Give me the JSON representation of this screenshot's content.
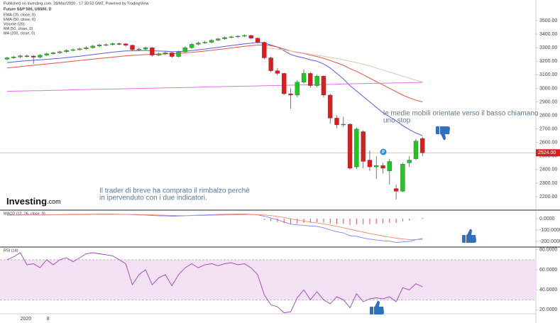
{
  "header": {
    "published": "Published on Investing.com, 28/Mar/2020 - 17:30:52 GMT, Powered by TradingView",
    "logo_main": "Investing",
    "logo_suffix": ".com"
  },
  "chart_data": [
    {
      "type": "candlestick",
      "title": "Future S&P 500, US500, D",
      "categories": [
        null,
        null,
        "2020",
        null,
        null,
        null,
        "8",
        null,
        null,
        null,
        null,
        null,
        null,
        null,
        null,
        null,
        null,
        null,
        null,
        null,
        null,
        null,
        null,
        null,
        null,
        null,
        null,
        null,
        null,
        null,
        null,
        null,
        null,
        null,
        null,
        null,
        null,
        null,
        null,
        null,
        null,
        null,
        null,
        null,
        null,
        null,
        null,
        null,
        null,
        null,
        null,
        null,
        null,
        null,
        null,
        null,
        null,
        null,
        null,
        null,
        null,
        null,
        null,
        null
      ],
      "open": [
        3215,
        3225,
        3232,
        3240,
        3238,
        3230,
        3245,
        3255,
        3262,
        3270,
        3280,
        3285,
        3292,
        3300,
        3312,
        3320,
        3322,
        3330,
        3328,
        3318,
        3285,
        3290,
        3300,
        3245,
        3255,
        3262,
        3235,
        3270,
        3300,
        3325,
        3335,
        3340,
        3355,
        3365,
        3375,
        3380,
        3385,
        3390,
        3370,
        3340,
        3225,
        3130,
        3110,
        2960,
        2950,
        3045,
        3110,
        3020,
        3090,
        2950,
        2780,
        2730,
        2735,
        2420,
        2680,
        2470,
        2420,
        2430,
        2390,
        2260,
        2240,
        2450,
        2480,
        2630
      ],
      "high": [
        3232,
        3240,
        3248,
        3250,
        3245,
        3252,
        3262,
        3270,
        3278,
        3288,
        3294,
        3300,
        3310,
        3320,
        3328,
        3332,
        3338,
        3338,
        3335,
        3322,
        3300,
        3308,
        3305,
        3265,
        3272,
        3270,
        3278,
        3310,
        3335,
        3345,
        3350,
        3362,
        3372,
        3382,
        3388,
        3392,
        3398,
        3395,
        3375,
        3345,
        3235,
        3150,
        3115,
        3000,
        3060,
        3140,
        3120,
        3100,
        3095,
        2960,
        2800,
        2790,
        2740,
        2710,
        2690,
        2540,
        2500,
        2450,
        2480,
        2290,
        2450,
        2500,
        2625,
        2640
      ],
      "low": [
        3205,
        3218,
        3225,
        3228,
        3180,
        3222,
        3238,
        3248,
        3255,
        3262,
        3272,
        3278,
        3285,
        3294,
        3305,
        3312,
        3315,
        3318,
        3308,
        3275,
        3275,
        3280,
        3235,
        3238,
        3245,
        3225,
        3228,
        3262,
        3292,
        3318,
        3328,
        3332,
        3348,
        3358,
        3368,
        3372,
        3378,
        3362,
        3330,
        3215,
        3120,
        3095,
        2950,
        2850,
        2935,
        3035,
        3005,
        3010,
        2935,
        2740,
        2705,
        2715,
        2400,
        2405,
        2410,
        2390,
        2330,
        2370,
        2290,
        2180,
        2235,
        2420,
        2470,
        2500
      ],
      "close": [
        3225,
        3232,
        3240,
        3238,
        3230,
        3245,
        3255,
        3262,
        3270,
        3280,
        3285,
        3292,
        3300,
        3312,
        3320,
        3322,
        3330,
        3328,
        3318,
        3285,
        3290,
        3300,
        3245,
        3255,
        3262,
        3235,
        3270,
        3300,
        3325,
        3335,
        3340,
        3355,
        3365,
        3375,
        3380,
        3385,
        3390,
        3370,
        3340,
        3225,
        3130,
        3110,
        2960,
        2950,
        3045,
        3110,
        3020,
        3090,
        2950,
        2780,
        2730,
        2735,
        2410,
        2700,
        2460,
        2420,
        2430,
        2410,
        2460,
        2240,
        2440,
        2470,
        2610,
        2524
      ],
      "last_label": "2524.00",
      "up_color": "#1ec81e",
      "down_color": "#e01b1b",
      "last_line_color": "#f4a090",
      "lines": [
        {
          "name": "EMA (20, close, 0)",
          "color": "#5b5bde",
          "values": [
            3190,
            3195,
            3200,
            3204,
            3207,
            3210,
            3214,
            3218,
            3222,
            3227,
            3232,
            3237,
            3243,
            3249,
            3255,
            3261,
            3267,
            3272,
            3276,
            3277,
            3278,
            3280,
            3277,
            3275,
            3274,
            3271,
            3271,
            3274,
            3279,
            3284,
            3290,
            3296,
            3302,
            3309,
            3316,
            3322,
            3328,
            3333,
            3339,
            3335,
            3320,
            3305,
            3277,
            3250,
            3235,
            3225,
            3210,
            3200,
            3180,
            3150,
            3110,
            3070,
            3020,
            2980,
            2940,
            2900,
            2860,
            2820,
            2790,
            2760,
            2725,
            2695,
            2670,
            2650
          ]
        },
        {
          "name": "EMA (50, close, 0)",
          "color": "#e8504a",
          "values": [
            3150,
            3155,
            3160,
            3165,
            3170,
            3175,
            3180,
            3185,
            3190,
            3195,
            3200,
            3205,
            3210,
            3215,
            3220,
            3225,
            3230,
            3235,
            3240,
            3243,
            3246,
            3249,
            3250,
            3252,
            3254,
            3255,
            3258,
            3262,
            3266,
            3270,
            3275,
            3280,
            3286,
            3292,
            3298,
            3304,
            3310,
            3315,
            3320,
            3320,
            3315,
            3305,
            3290,
            3275,
            3265,
            3258,
            3245,
            3235,
            3222,
            3205,
            3188,
            3170,
            3145,
            3125,
            3100,
            3075,
            3050,
            3025,
            3000,
            2975,
            2950,
            2930,
            2912,
            2900
          ]
        },
        {
          "name": "Volume (20)"
        },
        {
          "name": "MA (50, close, 0)",
          "color": "#d8c8b0",
          "values": [
            null,
            null,
            null,
            null,
            null,
            null,
            null,
            null,
            null,
            null,
            null,
            null,
            null,
            null,
            null,
            null,
            null,
            null,
            null,
            null,
            null,
            null,
            null,
            null,
            null,
            null,
            null,
            null,
            null,
            null,
            null,
            null,
            null,
            null,
            null,
            null,
            null,
            null,
            null,
            3300,
            3295,
            3290,
            3283,
            3275,
            3268,
            3260,
            3252,
            3245,
            3237,
            3228,
            3220,
            3210,
            3200,
            3190,
            3178,
            3165,
            3150,
            3135,
            3120,
            3105,
            3090,
            3075,
            3060,
            3045
          ]
        },
        {
          "name": "MA (200, close, 0)",
          "color": "#e070e0",
          "values": [
            2978,
            2979,
            2980,
            2981,
            2982,
            2983,
            2984,
            2985,
            2986,
            2987,
            2989,
            2990,
            2991,
            2992,
            2993,
            2994,
            2995,
            2996,
            2997,
            2998,
            2999,
            3000,
            3001,
            3002,
            3003,
            3004,
            3005,
            3006,
            3007,
            3008,
            3010,
            3011,
            3012,
            3013,
            3014,
            3015,
            3016,
            3017,
            3018,
            3019,
            3020,
            3021,
            3022,
            3023,
            3024,
            3025,
            3026,
            3027,
            3028,
            3029,
            3030,
            3032,
            3033,
            3034,
            3035,
            3036,
            3037,
            3038,
            3039,
            3040,
            3041,
            3042,
            3043,
            3044
          ]
        }
      ],
      "marker": "P",
      "annotations": [
        "le medie mobili orientate verso il basso chiamano",
        "uno stop",
        "Il trader di breve ha comprato il rimbalzo perchè",
        "in ipervenduto con i due indicatori."
      ],
      "ylim": [
        2106,
        3652
      ],
      "yticks": [
        {
          "value": 2200,
          "label": "2200.00"
        },
        {
          "value": 2300,
          "label": "2300.00"
        },
        {
          "value": 2400,
          "label": "2400.00"
        },
        {
          "value": 2500,
          "label": "2500.00"
        },
        {
          "value": 2600,
          "label": "2600.00"
        },
        {
          "value": 2700,
          "label": "2700.00"
        },
        {
          "value": 2800,
          "label": "2800.00"
        },
        {
          "value": 2900,
          "label": "2900.00"
        },
        {
          "value": 3000,
          "label": "3000.00"
        },
        {
          "value": 3100,
          "label": "3100.00"
        },
        {
          "value": 3200,
          "label": "3200.00"
        },
        {
          "value": 3300,
          "label": "3300.00"
        },
        {
          "value": 3400,
          "label": "3400.00"
        },
        {
          "value": 3500,
          "label": "3500.00"
        }
      ]
    },
    {
      "type": "line",
      "title": "MACD (12, 26, close, 9)",
      "series": [
        {
          "color": "#8080ee",
          "values": [
            30,
            32,
            34,
            35,
            34,
            33,
            34,
            35,
            36,
            37,
            38,
            38,
            39,
            39,
            40,
            40,
            40,
            39,
            38,
            35,
            33,
            32,
            28,
            26,
            25,
            22,
            23,
            26,
            29,
            31,
            33,
            35,
            37,
            38,
            39,
            40,
            40,
            38,
            34,
            22,
            5,
            -10,
            -30,
            -48,
            -55,
            -58,
            -65,
            -68,
            -80,
            -100,
            -115,
            -125,
            -150,
            -155,
            -170,
            -180,
            -188,
            -195,
            -198,
            -210,
            -205,
            -200,
            -185,
            -175
          ]
        },
        {
          "color": "#f08a70",
          "values": [
            30,
            31,
            32,
            33,
            33,
            33,
            33,
            34,
            34,
            35,
            35,
            36,
            36,
            37,
            37,
            38,
            38,
            38,
            38,
            37,
            36,
            35,
            34,
            32,
            30,
            28,
            27,
            27,
            27,
            28,
            29,
            30,
            32,
            33,
            34,
            35,
            36,
            37,
            36,
            33,
            27,
            20,
            10,
            -2,
            -12,
            -21,
            -30,
            -37,
            -46,
            -57,
            -68,
            -80,
            -94,
            -106,
            -119,
            -131,
            -142,
            -153,
            -162,
            -172,
            -179,
            -184,
            -184,
            -182
          ]
        },
        {
          "style": "histogram",
          "color": "#e05050",
          "values": [
            null,
            null,
            null,
            null,
            null,
            null,
            null,
            null,
            null,
            null,
            null,
            null,
            null,
            null,
            null,
            null,
            null,
            null,
            null,
            null,
            null,
            null,
            null,
            null,
            null,
            null,
            null,
            null,
            null,
            null,
            null,
            null,
            null,
            null,
            null,
            null,
            null,
            1,
            -2,
            -11,
            -22,
            -30,
            -40,
            -46,
            -43,
            -37,
            -35,
            -31,
            -34,
            -43,
            -47,
            -45,
            -56,
            -49,
            -51,
            -49,
            -46,
            -42,
            -36,
            -38,
            -26,
            -16,
            -1,
            7
          ]
        }
      ],
      "ylim": [
        -244,
        69
      ],
      "yticks": [
        {
          "value": 0,
          "label": "0.0000"
        },
        {
          "value": -100,
          "label": "-100.0000"
        },
        {
          "value": -200,
          "label": "-200.0000"
        }
      ]
    },
    {
      "type": "line",
      "title": "RSI (14)",
      "series": [
        {
          "color": "#a040c0",
          "values": [
            70,
            73,
            77,
            65,
            66,
            62,
            70,
            65,
            70,
            72,
            68,
            72,
            76,
            77,
            76,
            75,
            74,
            70,
            66,
            45,
            55,
            60,
            45,
            52,
            55,
            44,
            55,
            62,
            66,
            62,
            65,
            66,
            64,
            66,
            67,
            65,
            66,
            62,
            55,
            35,
            25,
            23,
            17,
            18,
            32,
            40,
            30,
            38,
            30,
            26,
            33,
            30,
            22,
            36,
            28,
            31,
            32,
            31,
            33,
            28,
            42,
            40,
            46,
            43
          ]
        }
      ],
      "band": [
        30,
        70
      ],
      "band_color": "#f3e2f3",
      "ylim": [
        16,
        82
      ],
      "yticks": [
        {
          "value": 20,
          "label": "20.0000"
        },
        {
          "value": 40,
          "label": "40.0000"
        },
        {
          "value": 60,
          "label": "60.0000"
        },
        {
          "value": 80,
          "label": "80.0000"
        }
      ]
    }
  ]
}
